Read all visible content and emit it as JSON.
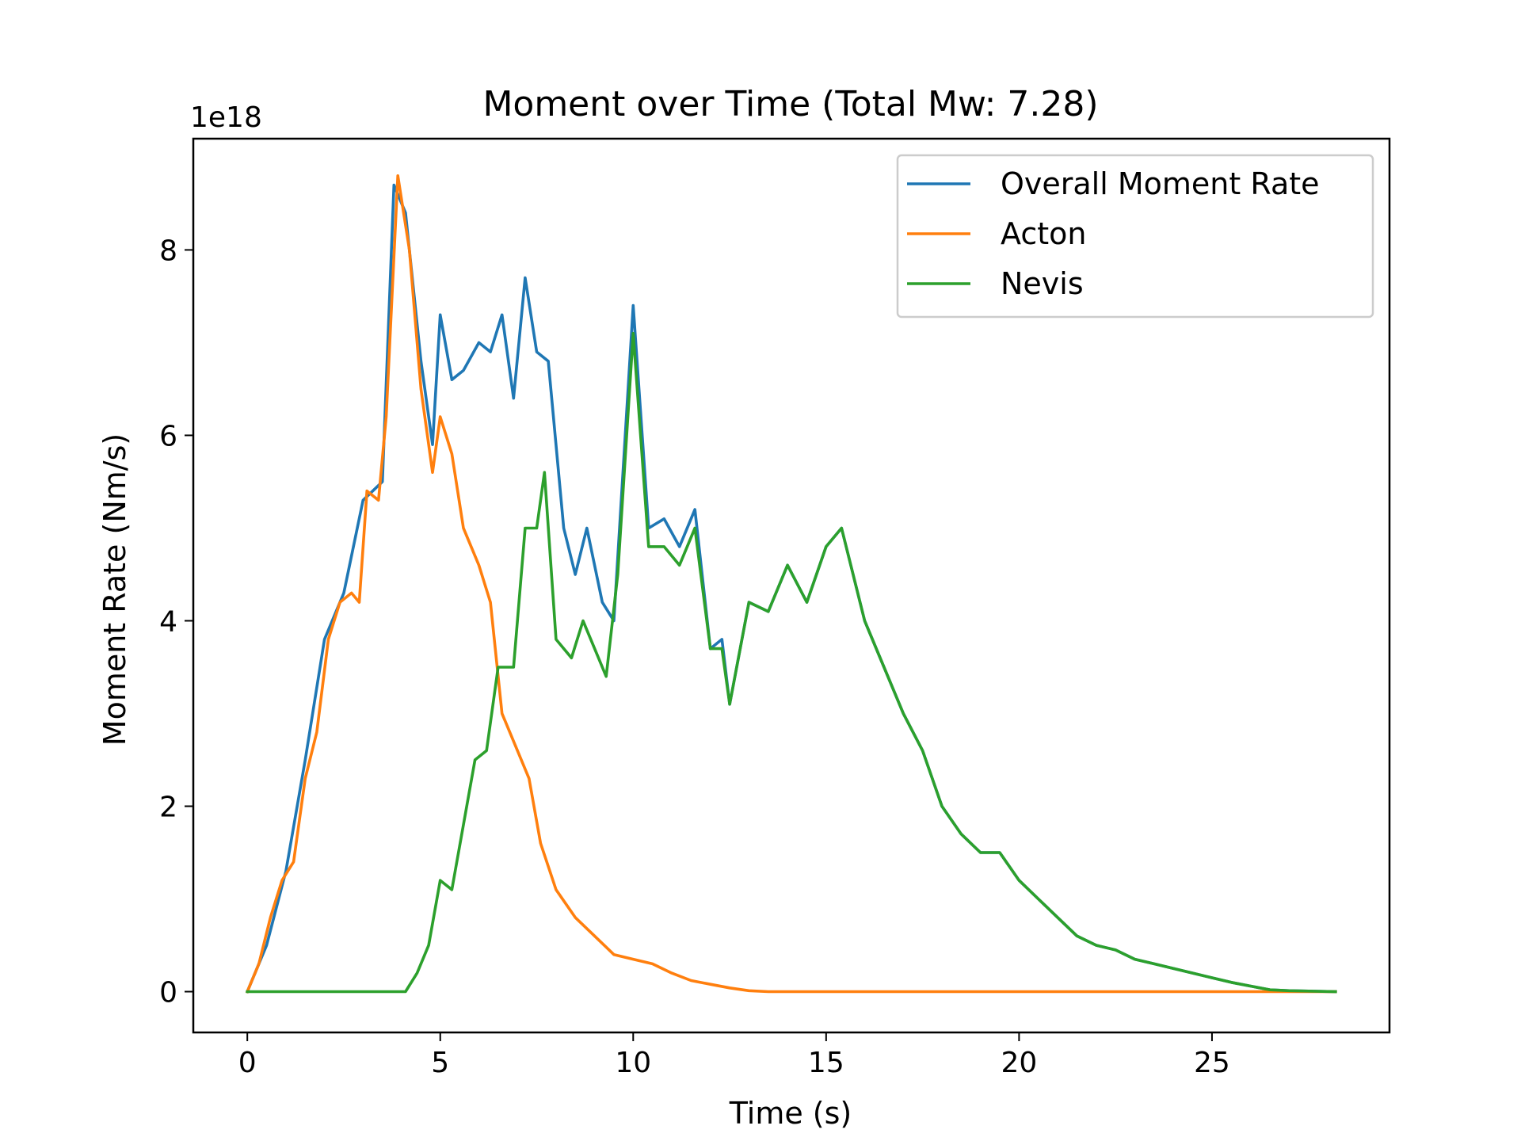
{
  "chart_data": {
    "type": "line",
    "title": "Moment over Time (Total Mw: 7.28)",
    "xlabel": "Time (s)",
    "ylabel": "Moment Rate (Nm/s)",
    "y_offset_label": "1e18",
    "xlim": [
      -1.4,
      29.6
    ],
    "ylim": [
      -0.44,
      9.2
    ],
    "x_ticks": [
      0,
      5,
      10,
      15,
      20,
      25
    ],
    "y_ticks": [
      0,
      2,
      4,
      6,
      8
    ],
    "y_tick_labels": [
      "0",
      "2",
      "4",
      "6",
      "8"
    ],
    "grid": false,
    "legend_position": "top-right",
    "series": [
      {
        "name": "Overall Moment Rate",
        "color": "#1f77b4",
        "points": [
          [
            0,
            0
          ],
          [
            0.5,
            0.5
          ],
          [
            1,
            1.3
          ],
          [
            1.5,
            2.5
          ],
          [
            2,
            3.8
          ],
          [
            2.5,
            4.3
          ],
          [
            3,
            5.3
          ],
          [
            3.5,
            5.5
          ],
          [
            3.8,
            8.7
          ],
          [
            4.1,
            8.4
          ],
          [
            4.5,
            6.8
          ],
          [
            4.8,
            5.9
          ],
          [
            5,
            7.3
          ],
          [
            5.3,
            6.6
          ],
          [
            5.6,
            6.7
          ],
          [
            6,
            7.0
          ],
          [
            6.3,
            6.9
          ],
          [
            6.6,
            7.3
          ],
          [
            6.9,
            6.4
          ],
          [
            7.2,
            7.7
          ],
          [
            7.5,
            6.9
          ],
          [
            7.8,
            6.8
          ],
          [
            8.2,
            5.0
          ],
          [
            8.5,
            4.5
          ],
          [
            8.8,
            5.0
          ],
          [
            9.2,
            4.2
          ],
          [
            9.5,
            4.0
          ],
          [
            10,
            7.4
          ],
          [
            10.4,
            5.0
          ],
          [
            10.8,
            5.1
          ],
          [
            11.2,
            4.8
          ],
          [
            11.6,
            5.2
          ],
          [
            12,
            3.7
          ],
          [
            12.3,
            3.8
          ],
          [
            12.5,
            3.1
          ],
          [
            13,
            4.2
          ],
          [
            13.5,
            4.1
          ],
          [
            14,
            4.6
          ],
          [
            14.5,
            4.2
          ],
          [
            15,
            4.8
          ],
          [
            15.4,
            5.0
          ],
          [
            16,
            4.0
          ],
          [
            16.5,
            3.5
          ],
          [
            17,
            3.0
          ],
          [
            17.5,
            2.6
          ],
          [
            18,
            2.0
          ],
          [
            18.5,
            1.7
          ],
          [
            19,
            1.5
          ],
          [
            19.5,
            1.5
          ],
          [
            20,
            1.2
          ],
          [
            20.5,
            1.0
          ],
          [
            21,
            0.8
          ],
          [
            21.5,
            0.6
          ],
          [
            22,
            0.5
          ],
          [
            22.5,
            0.45
          ],
          [
            23,
            0.35
          ],
          [
            23.5,
            0.3
          ],
          [
            24,
            0.25
          ],
          [
            24.5,
            0.2
          ],
          [
            25,
            0.15
          ],
          [
            25.5,
            0.1
          ],
          [
            26,
            0.06
          ],
          [
            26.5,
            0.02
          ],
          [
            27,
            0.01
          ],
          [
            28.2,
            0
          ]
        ]
      },
      {
        "name": "Acton",
        "color": "#ff7f0e",
        "points": [
          [
            0,
            0
          ],
          [
            0.3,
            0.3
          ],
          [
            0.6,
            0.8
          ],
          [
            0.9,
            1.2
          ],
          [
            1.2,
            1.4
          ],
          [
            1.5,
            2.3
          ],
          [
            1.8,
            2.8
          ],
          [
            2.1,
            3.8
          ],
          [
            2.4,
            4.2
          ],
          [
            2.7,
            4.3
          ],
          [
            2.9,
            4.2
          ],
          [
            3.1,
            5.4
          ],
          [
            3.4,
            5.3
          ],
          [
            3.6,
            6.2
          ],
          [
            3.9,
            8.8
          ],
          [
            4.2,
            8.0
          ],
          [
            4.5,
            6.5
          ],
          [
            4.8,
            5.6
          ],
          [
            5,
            6.2
          ],
          [
            5.3,
            5.8
          ],
          [
            5.6,
            5.0
          ],
          [
            6,
            4.6
          ],
          [
            6.3,
            4.2
          ],
          [
            6.6,
            3.0
          ],
          [
            7,
            2.6
          ],
          [
            7.3,
            2.3
          ],
          [
            7.6,
            1.6
          ],
          [
            8,
            1.1
          ],
          [
            8.5,
            0.8
          ],
          [
            9,
            0.6
          ],
          [
            9.5,
            0.4
          ],
          [
            10,
            0.35
          ],
          [
            10.5,
            0.3
          ],
          [
            11,
            0.2
          ],
          [
            11.5,
            0.12
          ],
          [
            12,
            0.08
          ],
          [
            12.5,
            0.04
          ],
          [
            13,
            0.01
          ],
          [
            13.5,
            0
          ],
          [
            28.2,
            0
          ]
        ]
      },
      {
        "name": "Nevis",
        "color": "#2ca02c",
        "points": [
          [
            0,
            0
          ],
          [
            4.1,
            0
          ],
          [
            4.4,
            0.2
          ],
          [
            4.7,
            0.5
          ],
          [
            5,
            1.2
          ],
          [
            5.3,
            1.1
          ],
          [
            5.6,
            1.8
          ],
          [
            5.9,
            2.5
          ],
          [
            6.2,
            2.6
          ],
          [
            6.5,
            3.5
          ],
          [
            6.9,
            3.5
          ],
          [
            7.2,
            5.0
          ],
          [
            7.5,
            5.0
          ],
          [
            7.7,
            5.6
          ],
          [
            8,
            3.8
          ],
          [
            8.4,
            3.6
          ],
          [
            8.7,
            4.0
          ],
          [
            9,
            3.7
          ],
          [
            9.3,
            3.4
          ],
          [
            9.6,
            4.5
          ],
          [
            10,
            7.1
          ],
          [
            10.4,
            4.8
          ],
          [
            10.8,
            4.8
          ],
          [
            11.2,
            4.6
          ],
          [
            11.6,
            5.0
          ],
          [
            12,
            3.7
          ],
          [
            12.3,
            3.7
          ],
          [
            12.5,
            3.1
          ],
          [
            13,
            4.2
          ],
          [
            13.5,
            4.1
          ],
          [
            14,
            4.6
          ],
          [
            14.5,
            4.2
          ],
          [
            15,
            4.8
          ],
          [
            15.4,
            5.0
          ],
          [
            16,
            4.0
          ],
          [
            16.5,
            3.5
          ],
          [
            17,
            3.0
          ],
          [
            17.5,
            2.6
          ],
          [
            18,
            2.0
          ],
          [
            18.5,
            1.7
          ],
          [
            19,
            1.5
          ],
          [
            19.5,
            1.5
          ],
          [
            20,
            1.2
          ],
          [
            20.5,
            1.0
          ],
          [
            21,
            0.8
          ],
          [
            21.5,
            0.6
          ],
          [
            22,
            0.5
          ],
          [
            22.5,
            0.45
          ],
          [
            23,
            0.35
          ],
          [
            23.5,
            0.3
          ],
          [
            24,
            0.25
          ],
          [
            24.5,
            0.2
          ],
          [
            25,
            0.15
          ],
          [
            25.5,
            0.1
          ],
          [
            26,
            0.06
          ],
          [
            26.5,
            0.02
          ],
          [
            27,
            0.01
          ],
          [
            28.2,
            0
          ]
        ]
      }
    ]
  }
}
